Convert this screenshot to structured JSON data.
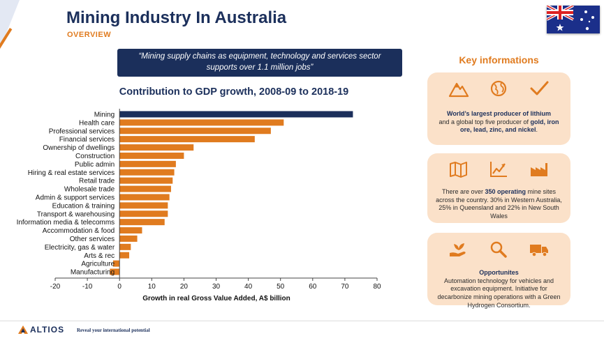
{
  "header": {
    "title": "Mining Industry In Australia",
    "subtitle": "OVERVIEW"
  },
  "quote": "“Mining supply chains as equipment, technology and services sector supports over 1.1 million jobs”",
  "chart_data": {
    "type": "bar",
    "orientation": "horizontal",
    "title": "Contribution to GDP growth, 2008-09 to 2018-19",
    "xlabel": "Growth in real Gross Value Added, A$ billion",
    "ylabel": "",
    "xlim": [
      -20,
      80
    ],
    "xticks": [
      -20,
      -10,
      0,
      10,
      20,
      30,
      40,
      50,
      60,
      70,
      80
    ],
    "categories": [
      "Mining",
      "Health care",
      "Professional services",
      "Financial services",
      "Ownership of dwellings",
      "Construction",
      "Public admin",
      "Hiring & real estate services",
      "Retail trade",
      "Wholesale trade",
      "Admin & support services",
      "Education & training",
      "Transport & warehousing",
      "Information media & telecomms",
      "Accommodation & food",
      "Other services",
      "Electricity, gas & water",
      "Arts & rec",
      "Agriculture",
      "Manufacturing"
    ],
    "values": [
      72.5,
      51,
      47,
      42,
      23,
      20,
      17.5,
      17,
      16.5,
      16,
      15.5,
      15,
      15,
      14,
      7,
      5.5,
      3.5,
      3,
      -2,
      -3
    ],
    "colors": {
      "highlight": "#1b2f5b",
      "default": "#e07b1f"
    },
    "grid": false
  },
  "key_info": {
    "title": "Key informations",
    "card1": {
      "icons": [
        "mountain-icon",
        "globe-icon",
        "checkmark-icon"
      ],
      "bold1": "World’s largest producer of lithium",
      "text1": "and a global top five producer of ",
      "bold2": "gold, iron ore, lead, zinc, and nickel",
      "text2": "."
    },
    "card2": {
      "icons": [
        "map-icon",
        "growth-chart-icon",
        "factory-icon"
      ],
      "text1": "There are over ",
      "bold1": "350 operating",
      "text2": " mine sites across the country. 30% in Western Australia, 25% in Queensland and 22% in New South Wales"
    },
    "card3": {
      "icons": [
        "plant-hand-icon",
        "magnifier-icon",
        "truck-icon"
      ],
      "bold1": "Opportunites",
      "text1": "Automation technology for vehicles and excavation equipment. Initiative for decarbonize mining operations with a Green Hydrogen Consortium."
    }
  },
  "footer": {
    "logo": "ALTIOS",
    "tagline": "Reveal your international potential"
  }
}
